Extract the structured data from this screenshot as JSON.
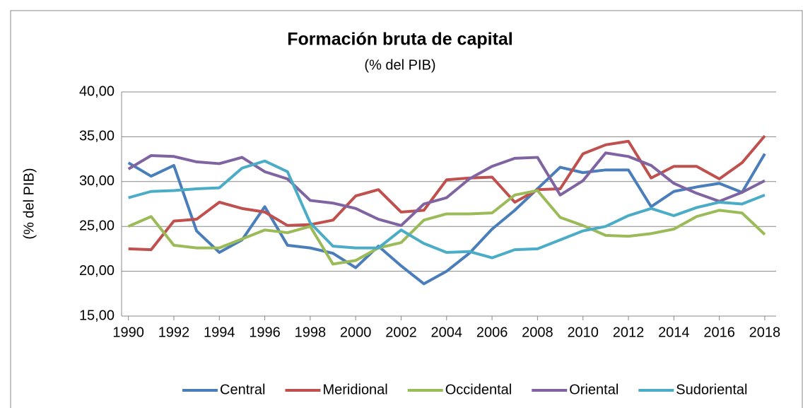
{
  "chart_data": {
    "type": "line",
    "title": "Formación bruta de capital",
    "subtitle": "(% del PIB)",
    "y_label": "(% del PIB)",
    "x": [
      1990,
      1991,
      1992,
      1993,
      1994,
      1995,
      1996,
      1997,
      1998,
      1999,
      2000,
      2001,
      2002,
      2003,
      2004,
      2005,
      2006,
      2007,
      2008,
      2009,
      2010,
      2011,
      2012,
      2013,
      2014,
      2015,
      2016,
      2017,
      2018
    ],
    "xlim": [
      1989.7,
      2018.5
    ],
    "xticks": [
      1990,
      1992,
      1994,
      1996,
      1998,
      2000,
      2002,
      2004,
      2006,
      2008,
      2010,
      2012,
      2014,
      2016,
      2018
    ],
    "ylim": [
      15,
      40
    ],
    "yticks": [
      {
        "value": 15,
        "label": "15,00"
      },
      {
        "value": 20,
        "label": "20,00"
      },
      {
        "value": 25,
        "label": "25,00"
      },
      {
        "value": 30,
        "label": "30,00"
      },
      {
        "value": 35,
        "label": "35,00"
      },
      {
        "value": 40,
        "label": "40,00"
      }
    ],
    "grid": true,
    "legend": "bottom",
    "series": [
      {
        "name": "Central",
        "color": "#4a7ebb",
        "values": [
          32.1,
          30.6,
          31.8,
          24.5,
          22.1,
          23.5,
          27.2,
          22.9,
          22.6,
          22.0,
          20.4,
          22.8,
          20.6,
          18.6,
          20.0,
          22.0,
          24.7,
          26.8,
          29.2,
          31.6,
          31.0,
          31.3,
          31.3,
          27.2,
          28.9,
          29.4,
          29.8,
          28.8,
          33.1
        ]
      },
      {
        "name": "Meridional",
        "color": "#c0504d",
        "values": [
          22.5,
          22.4,
          25.6,
          25.8,
          27.7,
          27.0,
          26.6,
          25.1,
          25.2,
          25.7,
          28.4,
          29.1,
          26.6,
          26.8,
          30.2,
          30.4,
          30.5,
          27.7,
          29.1,
          29.2,
          33.1,
          34.1,
          34.5,
          30.4,
          31.7,
          31.7,
          30.3,
          32.1,
          35.1
        ]
      },
      {
        "name": "Occidental",
        "color": "#9bbb59",
        "values": [
          25.0,
          26.1,
          22.9,
          22.6,
          22.6,
          23.6,
          24.6,
          24.3,
          25.0,
          20.8,
          21.2,
          22.6,
          23.2,
          25.7,
          26.4,
          26.4,
          26.5,
          28.5,
          29.0,
          26.0,
          25.1,
          24.0,
          23.9,
          24.2,
          24.7,
          26.1,
          26.8,
          26.5,
          24.1
        ]
      },
      {
        "name": "Oriental",
        "color": "#8064a2",
        "values": [
          31.4,
          32.9,
          32.8,
          32.2,
          32.0,
          32.7,
          31.1,
          30.3,
          27.9,
          27.6,
          27.0,
          25.8,
          25.1,
          27.5,
          28.2,
          30.3,
          31.7,
          32.6,
          32.7,
          28.5,
          30.1,
          33.2,
          32.8,
          31.8,
          29.8,
          28.7,
          27.8,
          28.8,
          30.1
        ]
      },
      {
        "name": "Sudoriental",
        "color": "#4bacc6",
        "values": [
          28.2,
          28.9,
          29.0,
          29.2,
          29.3,
          31.5,
          32.3,
          31.1,
          25.4,
          22.8,
          22.6,
          22.6,
          24.6,
          23.1,
          22.1,
          22.2,
          21.5,
          22.4,
          22.5,
          23.5,
          24.5,
          25.0,
          26.2,
          27.0,
          26.2,
          27.1,
          27.7,
          27.5,
          28.5
        ]
      }
    ]
  }
}
